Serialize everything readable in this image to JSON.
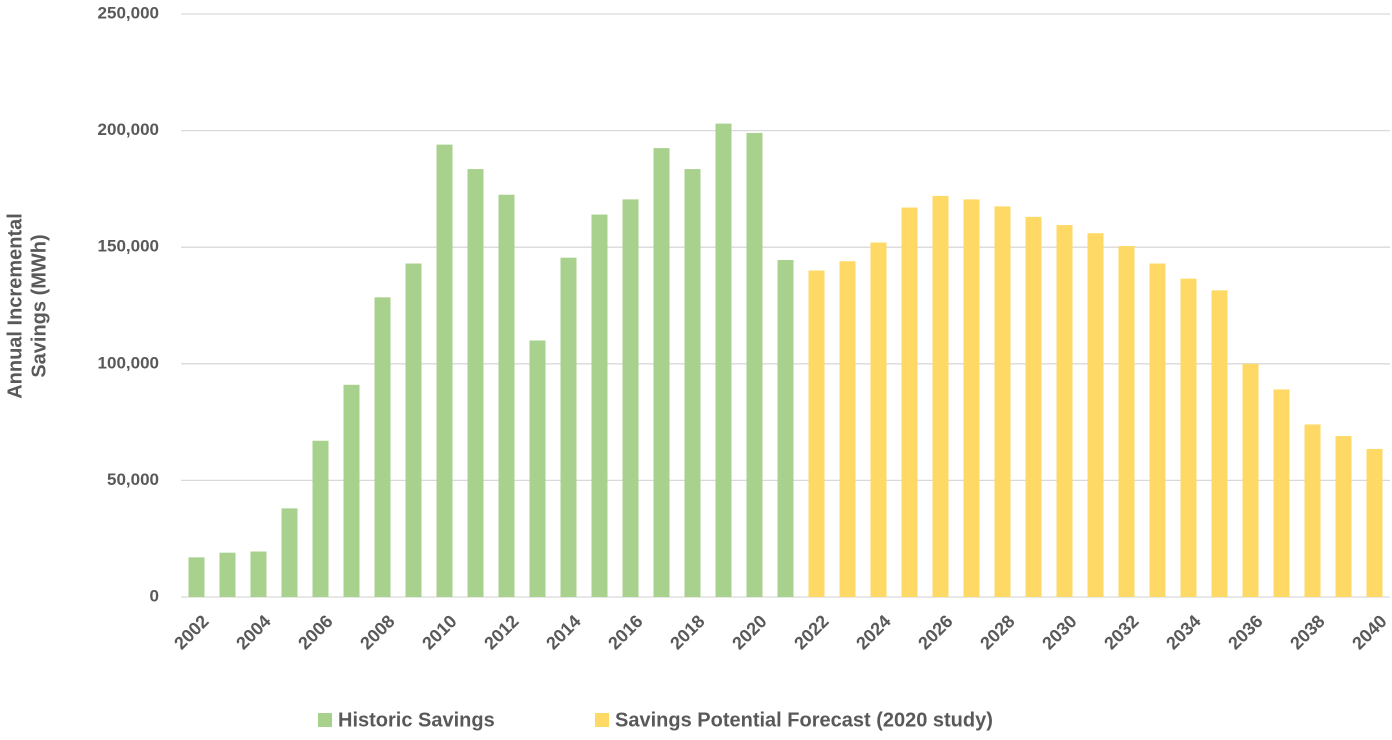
{
  "chart_data": {
    "type": "bar",
    "ylabel": [
      "Annual Incremental",
      "Savings (MWh)"
    ],
    "categories": [
      "2002",
      null,
      "2004",
      null,
      "2006",
      null,
      "2008",
      null,
      "2010",
      null,
      "2012",
      null,
      "2014",
      null,
      "2016",
      null,
      "2018",
      null,
      "2020",
      null,
      "2022",
      null,
      "2024",
      null,
      "2026",
      null,
      "2028",
      null,
      "2030",
      null,
      "2032",
      null,
      "2034",
      null,
      "2036",
      null,
      "2038",
      null,
      "2040"
    ],
    "series": [
      {
        "name": "Historic Savings",
        "color": "#a9d18e",
        "values": [
          17000,
          19000,
          19500,
          38000,
          67000,
          91000,
          128500,
          143000,
          194000,
          183500,
          172500,
          110000,
          145500,
          164000,
          170500,
          192500,
          183500,
          203000,
          199000,
          144500,
          null,
          null,
          null,
          null,
          null,
          null,
          null,
          null,
          null,
          null,
          null,
          null,
          null,
          null,
          null,
          null,
          null,
          null,
          null
        ]
      },
      {
        "name": "Savings Potential Forecast (2020 study)",
        "color": "#ffd966",
        "values": [
          null,
          null,
          null,
          null,
          null,
          null,
          null,
          null,
          null,
          null,
          null,
          null,
          null,
          null,
          null,
          null,
          null,
          null,
          null,
          null,
          140000,
          144000,
          152000,
          167000,
          172000,
          170500,
          167500,
          163000,
          159500,
          156000,
          150500,
          143000,
          136500,
          131500,
          100000,
          89000,
          74000,
          69000,
          63500
        ]
      }
    ],
    "ylim": [
      0,
      250000
    ],
    "yticks": [
      0,
      {
        "value": 50000,
        "label": "50,000"
      },
      {
        "value": 100000,
        "label": "100,000"
      },
      {
        "value": 150000,
        "label": "150,000"
      },
      {
        "value": 200000,
        "label": "200,000"
      },
      {
        "value": 250000,
        "label": "250,000"
      }
    ],
    "grid": true
  }
}
